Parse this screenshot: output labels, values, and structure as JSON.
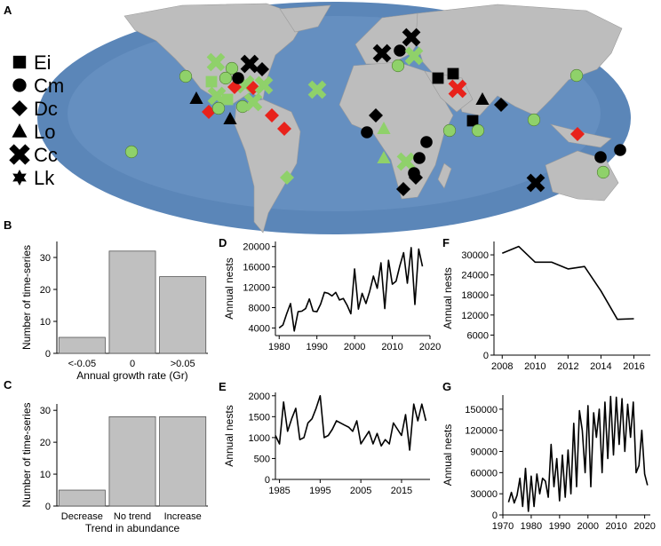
{
  "panel_letters": {
    "A": "A",
    "B": "B",
    "C": "C",
    "D": "D",
    "E": "E",
    "F": "F",
    "G": "G"
  },
  "map": {
    "ocean_color": "#5b86b8",
    "land_color": "#bdbdbd",
    "legend": [
      {
        "marker": "square",
        "label": "Ei"
      },
      {
        "marker": "circle",
        "label": "Cm"
      },
      {
        "marker": "diamond",
        "label": "Dc"
      },
      {
        "marker": "triangle",
        "label": "Lo"
      },
      {
        "marker": "cross",
        "label": "Cc"
      },
      {
        "marker": "star",
        "label": "Lk"
      }
    ],
    "status_colors": {
      "black": "#000000",
      "green": "#8fd16a",
      "red": "#e8221b"
    }
  },
  "chart_data": [
    {
      "panel": "B",
      "type": "bar",
      "categories": [
        "<-0.05",
        "0",
        ">0.05"
      ],
      "values": [
        5,
        32,
        24
      ],
      "xlabel": "Annual growth rate (Gr)",
      "ylabel": "Number of time-series",
      "ylim": [
        0,
        35
      ],
      "yticks": [
        "0",
        "10",
        "20",
        "30"
      ],
      "bar_color": "#c0c0c0"
    },
    {
      "panel": "C",
      "type": "bar",
      "categories": [
        "Decrease",
        "No trend",
        "Increase"
      ],
      "values": [
        5,
        28,
        28
      ],
      "xlabel": "Trend in abundance",
      "ylabel": "Number of time-series",
      "ylim": [
        0,
        32
      ],
      "yticks": [
        "0",
        "10",
        "20",
        "30"
      ],
      "bar_color": "#c0c0c0"
    },
    {
      "panel": "D",
      "type": "line",
      "ylabel": "Annual nests",
      "xlim": [
        1979,
        2020
      ],
      "ylim": [
        2500,
        21000
      ],
      "xticks": [
        "1980",
        "1990",
        "2000",
        "2010",
        "2020"
      ],
      "yticks": [
        "4000",
        "8000",
        "12000",
        "16000",
        "20000"
      ],
      "x": [
        1980,
        1981,
        1982,
        1983,
        1984,
        1985,
        1986,
        1987,
        1988,
        1989,
        1990,
        1991,
        1992,
        1993,
        1994,
        1995,
        1996,
        1997,
        1998,
        1999,
        2000,
        2001,
        2002,
        2003,
        2004,
        2005,
        2006,
        2007,
        2008,
        2009,
        2010,
        2011,
        2012,
        2013,
        2014,
        2015,
        2016,
        2017,
        2018
      ],
      "y": [
        4000,
        4600,
        6800,
        8800,
        3400,
        7200,
        7300,
        7800,
        9700,
        7300,
        7200,
        8700,
        11000,
        10800,
        10300,
        11000,
        9500,
        9800,
        8500,
        6800,
        15600,
        7700,
        10800,
        8800,
        11200,
        14200,
        11800,
        16800,
        7800,
        17300,
        12600,
        13200,
        16200,
        18800,
        12800,
        19800,
        8600,
        19500,
        16100
      ]
    },
    {
      "panel": "E",
      "type": "line",
      "ylabel": "Annual nests",
      "xlim": [
        1984,
        2022
      ],
      "ylim": [
        0,
        2080
      ],
      "xticks": [
        "1985",
        "1995",
        "2005",
        "2015"
      ],
      "yticks": [
        "0",
        "500",
        "1000",
        "1500",
        "2000"
      ],
      "x": [
        1984,
        1985,
        1986,
        1987,
        1988,
        1989,
        1990,
        1991,
        1992,
        1993,
        1994,
        1995,
        1996,
        1997,
        1998,
        1999,
        2000,
        2001,
        2002,
        2003,
        2004,
        2005,
        2006,
        2007,
        2008,
        2009,
        2010,
        2011,
        2012,
        2013,
        2014,
        2015,
        2016,
        2017,
        2018,
        2019,
        2020,
        2021
      ],
      "y": [
        1050,
        850,
        1850,
        1150,
        1450,
        1700,
        950,
        1000,
        1350,
        1450,
        1700,
        2000,
        1000,
        1050,
        1200,
        1400,
        1350,
        1300,
        1250,
        1150,
        1400,
        850,
        1000,
        1150,
        850,
        1100,
        800,
        950,
        850,
        1350,
        1200,
        1050,
        1550,
        700,
        1800,
        1400,
        1800,
        1400
      ]
    },
    {
      "panel": "F",
      "type": "line",
      "ylabel": "Annual nests",
      "xlim": [
        2007.5,
        2017
      ],
      "ylim": [
        0,
        34000
      ],
      "xticks": [
        "2008",
        "2010",
        "2012",
        "2014",
        "2016"
      ],
      "yticks": [
        "0",
        "6000",
        "12000",
        "18000",
        "24000",
        "30000"
      ],
      "x": [
        2008,
        2009,
        2010,
        2011,
        2012,
        2013,
        2014,
        2015,
        2016
      ],
      "y": [
        30500,
        32500,
        27800,
        27800,
        25800,
        26500,
        19200,
        10700,
        10900
      ]
    },
    {
      "panel": "G",
      "type": "line",
      "ylabel": "Annual nests",
      "xlim": [
        1970,
        2022
      ],
      "ylim": [
        0,
        170000
      ],
      "xticks": [
        "1970",
        "1980",
        "1990",
        "2000",
        "2010",
        "2020"
      ],
      "yticks": [
        "0",
        "30000",
        "60000",
        "90000",
        "120000",
        "150000"
      ],
      "x": [
        1972,
        1973,
        1974,
        1975,
        1976,
        1977,
        1978,
        1979,
        1980,
        1981,
        1982,
        1983,
        1984,
        1985,
        1986,
        1987,
        1988,
        1989,
        1990,
        1991,
        1992,
        1993,
        1994,
        1995,
        1996,
        1997,
        1998,
        1999,
        2000,
        2001,
        2002,
        2003,
        2004,
        2005,
        2006,
        2007,
        2008,
        2009,
        2010,
        2011,
        2012,
        2013,
        2014,
        2015,
        2016,
        2017,
        2018,
        2019,
        2020,
        2021
      ],
      "y": [
        18000,
        32000,
        17000,
        28000,
        52000,
        12000,
        66000,
        5000,
        55000,
        12000,
        58000,
        30000,
        52000,
        48000,
        25000,
        100000,
        40000,
        80000,
        20000,
        85000,
        25000,
        92000,
        30000,
        130000,
        40000,
        148000,
        120000,
        60000,
        155000,
        40000,
        145000,
        110000,
        150000,
        60000,
        160000,
        80000,
        168000,
        85000,
        167000,
        100000,
        165000,
        90000,
        157000,
        110000,
        160000,
        60000,
        70000,
        120000,
        58000,
        42000
      ]
    }
  ]
}
